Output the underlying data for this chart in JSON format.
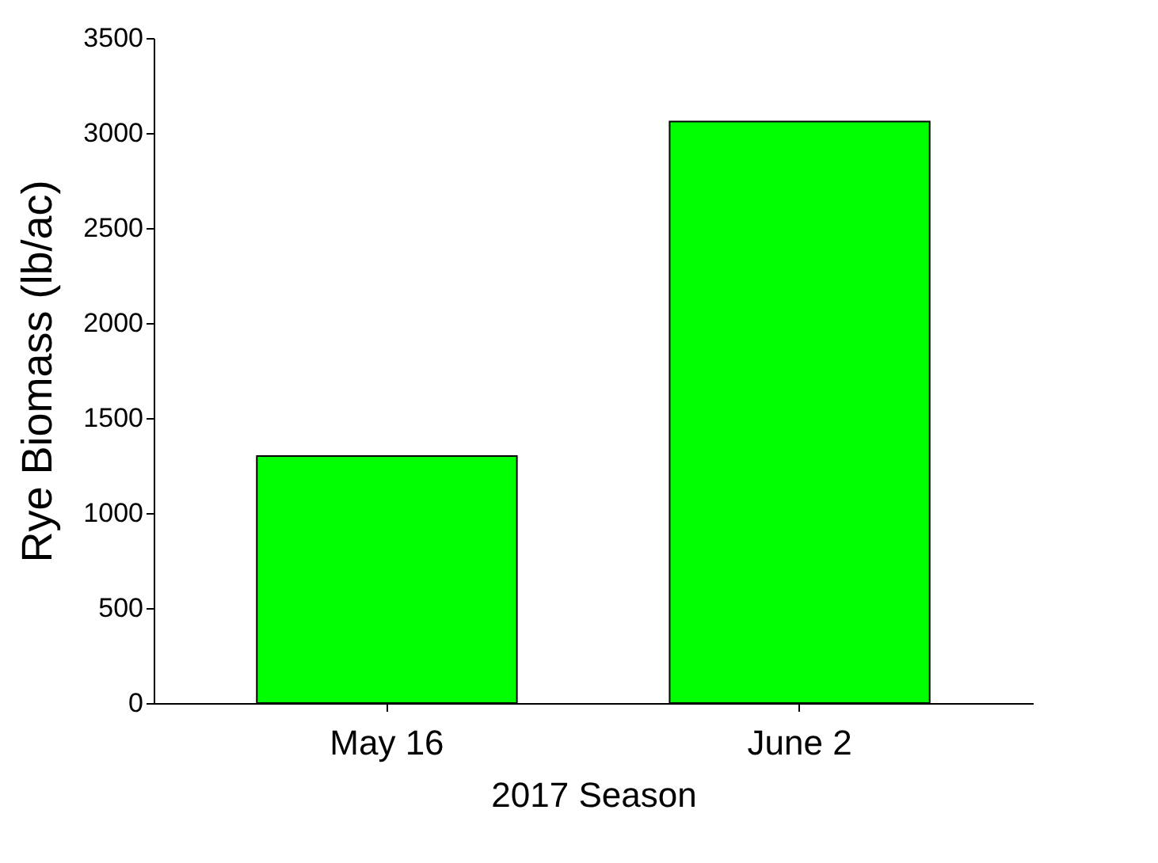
{
  "chart_data": {
    "type": "bar",
    "xlabel": "2017 Season",
    "ylabel": "Rye Biomass (lb/ac)",
    "categories": [
      "May 16",
      "June 2"
    ],
    "values": [
      1300,
      3060
    ],
    "color": "#00ff00",
    "ylim": [
      0,
      3500
    ],
    "yticks": [
      0,
      500,
      1000,
      1500,
      2000,
      2500,
      3000,
      3500
    ],
    "grid": false
  }
}
